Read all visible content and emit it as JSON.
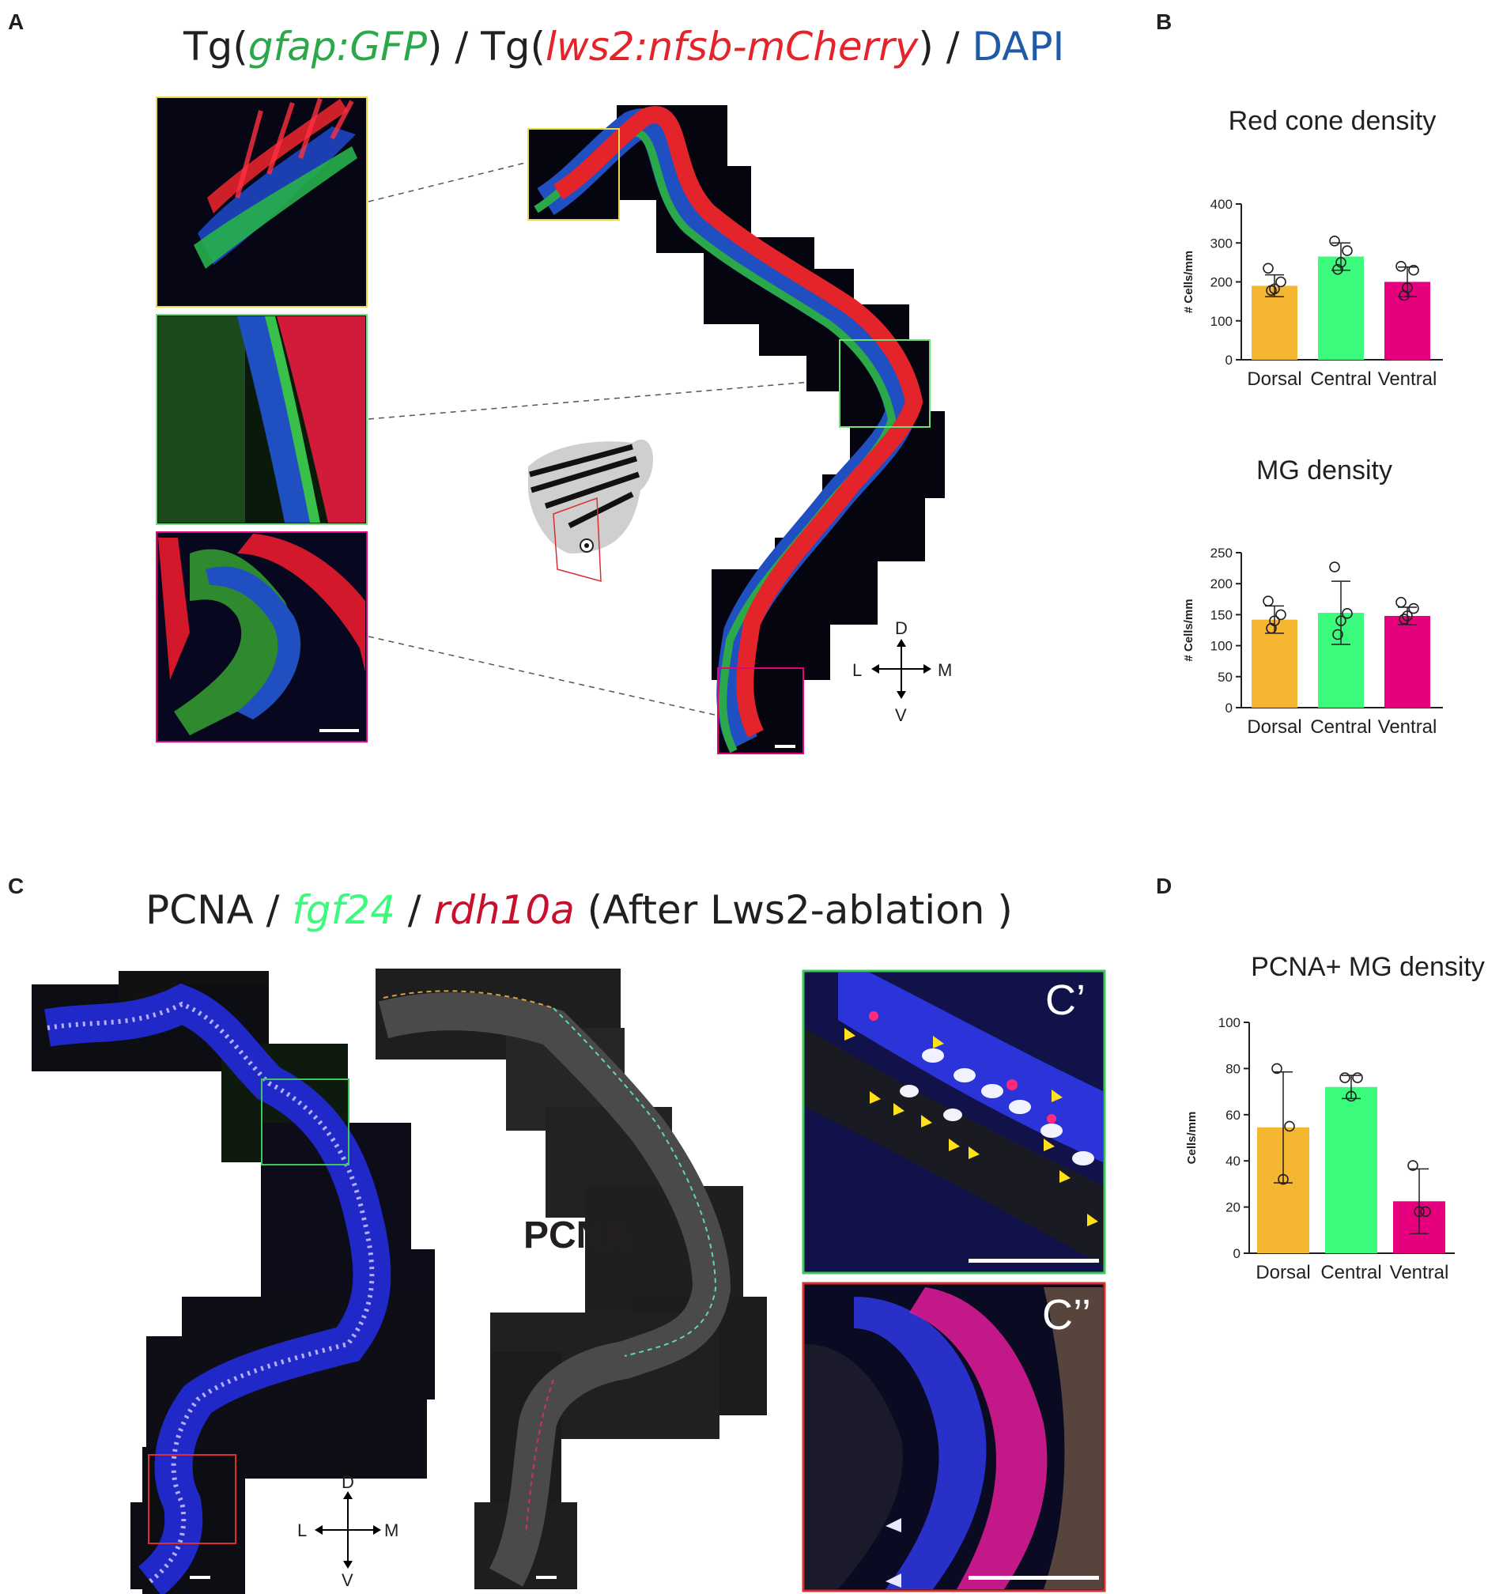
{
  "panel_labels": {
    "a": "A",
    "b": "B",
    "c": "C",
    "d": "D"
  },
  "titleA": {
    "p1": "Tg(",
    "gene1": "gfap:GFP",
    "p2": ") / Tg(",
    "gene2": "lws2:nfsb-mCherry",
    "p3": ") / ",
    "dapi": "DAPI"
  },
  "titleC": {
    "pcna": "PCNA",
    "sep1": " / ",
    "fgf": "fgf24",
    "sep2": " / ",
    "rdh": "rdh10a",
    "rest": " (After Lws2-ablation )"
  },
  "pcna_label": "PCNA",
  "inset_labels": {
    "c1": "C’",
    "c2": "C’’"
  },
  "compass": {
    "d": "D",
    "v": "V",
    "l": "L",
    "m": "M"
  },
  "colors": {
    "dorsal": "#f5b731",
    "central": "#3bfb7d",
    "ventral": "#e6007e",
    "green_channel": "#2aa84a",
    "red_channel": "#e3242b",
    "blue_channel": "#1f5aa6"
  },
  "chart_data": [
    {
      "type": "bar",
      "title": "Red cone density",
      "ylabel": "# Cells/mm",
      "categories": [
        "Dorsal",
        "Central",
        "Ventral"
      ],
      "values": [
        190,
        265,
        200
      ],
      "error": [
        28,
        35,
        38
      ],
      "points": [
        [
          235,
          200,
          182,
          178
        ],
        [
          305,
          280,
          250,
          232
        ],
        [
          240,
          230,
          185,
          165
        ]
      ],
      "ylim": [
        0,
        400
      ],
      "yticks": [
        0,
        100,
        200,
        300,
        400
      ]
    },
    {
      "type": "bar",
      "title": "MG density",
      "ylabel": "# Cells/mm",
      "categories": [
        "Dorsal",
        "Central",
        "Ventral"
      ],
      "values": [
        142,
        153,
        148
      ],
      "error": [
        22,
        51,
        14
      ],
      "points": [
        [
          172,
          150,
          140,
          128
        ],
        [
          227,
          152,
          140,
          118
        ],
        [
          170,
          160,
          148,
          143
        ]
      ],
      "ylim": [
        0,
        250
      ],
      "yticks": [
        0,
        50,
        100,
        150,
        200,
        250
      ]
    },
    {
      "type": "bar",
      "title": "PCNA+ MG density",
      "ylabel": "Cells/mm",
      "categories": [
        "Dorsal",
        "Central",
        "Ventral"
      ],
      "values": [
        54.5,
        72,
        22.5
      ],
      "error": [
        24,
        5,
        14
      ],
      "points": [
        [
          80,
          55,
          32
        ],
        [
          76,
          76,
          68
        ],
        [
          38,
          18,
          18
        ]
      ],
      "ylim": [
        0,
        100
      ],
      "yticks": [
        0,
        20,
        40,
        60,
        80,
        100
      ]
    }
  ]
}
